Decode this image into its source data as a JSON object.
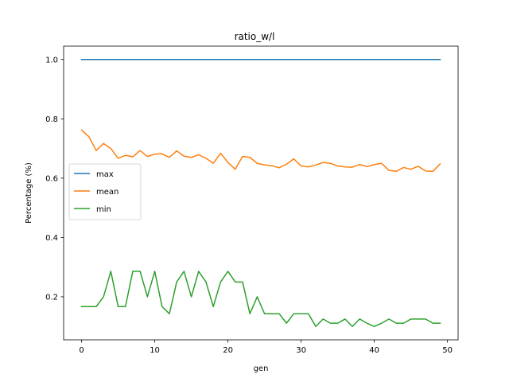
{
  "chart_data": {
    "type": "line",
    "title": "ratio_w/l",
    "xlabel": "gen",
    "ylabel": "Percentage (%)",
    "xlim": [
      -2.45,
      51.45
    ],
    "ylim": [
      0.055,
      1.045
    ],
    "xticks": [
      0,
      10,
      20,
      30,
      40,
      50
    ],
    "yticks": [
      0.2,
      0.4,
      0.6,
      0.8,
      1.0
    ],
    "xtick_labels": [
      "0",
      "10",
      "20",
      "30",
      "40",
      "50"
    ],
    "ytick_labels": [
      "0.2",
      "0.4",
      "0.6",
      "0.8",
      "1.0"
    ],
    "grid": false,
    "legend_position": "center-left",
    "x": [
      0,
      1,
      2,
      3,
      4,
      5,
      6,
      7,
      8,
      9,
      10,
      11,
      12,
      13,
      14,
      15,
      16,
      17,
      18,
      19,
      20,
      21,
      22,
      23,
      24,
      25,
      26,
      27,
      28,
      29,
      30,
      31,
      32,
      33,
      34,
      35,
      36,
      37,
      38,
      39,
      40,
      41,
      42,
      43,
      44,
      45,
      46,
      47,
      48,
      49
    ],
    "series": [
      {
        "name": "max",
        "color": "#1f77b4",
        "values": [
          1,
          1,
          1,
          1,
          1,
          1,
          1,
          1,
          1,
          1,
          1,
          1,
          1,
          1,
          1,
          1,
          1,
          1,
          1,
          1,
          1,
          1,
          1,
          1,
          1,
          1,
          1,
          1,
          1,
          1,
          1,
          1,
          1,
          1,
          1,
          1,
          1,
          1,
          1,
          1,
          1,
          1,
          1,
          1,
          1,
          1,
          1,
          1,
          1,
          1
        ]
      },
      {
        "name": "mean",
        "color": "#ff7f0e",
        "values": [
          0.762,
          0.74,
          0.693,
          0.717,
          0.7,
          0.667,
          0.677,
          0.672,
          0.693,
          0.673,
          0.681,
          0.682,
          0.67,
          0.692,
          0.674,
          0.67,
          0.679,
          0.667,
          0.65,
          0.684,
          0.653,
          0.63,
          0.673,
          0.67,
          0.65,
          0.645,
          0.642,
          0.635,
          0.647,
          0.665,
          0.641,
          0.638,
          0.644,
          0.653,
          0.65,
          0.641,
          0.638,
          0.637,
          0.646,
          0.639,
          0.646,
          0.65,
          0.626,
          0.623,
          0.636,
          0.63,
          0.64,
          0.624,
          0.623,
          0.648
        ]
      },
      {
        "name": "min",
        "color": "#2ca02c",
        "values": [
          0.167,
          0.167,
          0.167,
          0.2,
          0.286,
          0.167,
          0.167,
          0.286,
          0.286,
          0.2,
          0.286,
          0.167,
          0.143,
          0.25,
          0.286,
          0.2,
          0.286,
          0.25,
          0.167,
          0.25,
          0.286,
          0.25,
          0.25,
          0.143,
          0.2,
          0.143,
          0.143,
          0.143,
          0.111,
          0.143,
          0.143,
          0.143,
          0.1,
          0.125,
          0.111,
          0.111,
          0.125,
          0.1,
          0.125,
          0.111,
          0.1,
          0.111,
          0.125,
          0.111,
          0.111,
          0.125,
          0.125,
          0.125,
          0.111,
          0.111
        ]
      }
    ]
  }
}
